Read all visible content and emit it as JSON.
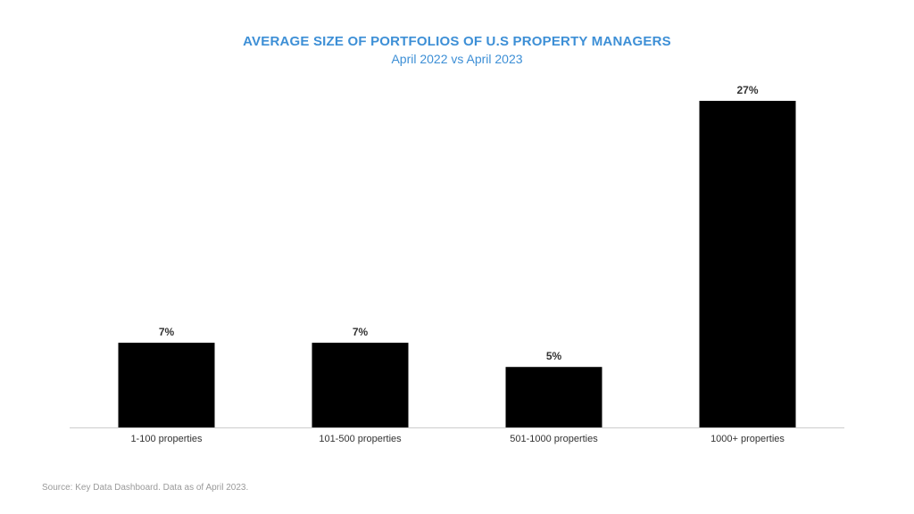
{
  "title": "AVERAGE SIZE OF PORTFOLIOS OF U.S PROPERTY MANAGERS",
  "subtitle": "April 2022 vs April 2023",
  "source": "Source: Key Data Dashboard. Data as of April 2023.",
  "colors": {
    "title": "#3d8fd6",
    "bar": "#000000",
    "axis": "#cccccc",
    "label": "#333333",
    "source": "#9a9a9a"
  },
  "chart_data": {
    "type": "bar",
    "title": "AVERAGE SIZE OF PORTFOLIOS OF U.S PROPERTY MANAGERS",
    "subtitle": "April 2022 vs April 2023",
    "categories": [
      "1-100 properties",
      "101-500 properties",
      "501-1000 properties",
      "1000+ properties"
    ],
    "values": [
      7,
      7,
      5,
      27
    ],
    "value_labels": [
      "7%",
      "7%",
      "5%",
      "27%"
    ],
    "unit": "%",
    "xlabel": "",
    "ylabel": "",
    "ylim": [
      0,
      27
    ],
    "grid": false,
    "legend": "none"
  }
}
